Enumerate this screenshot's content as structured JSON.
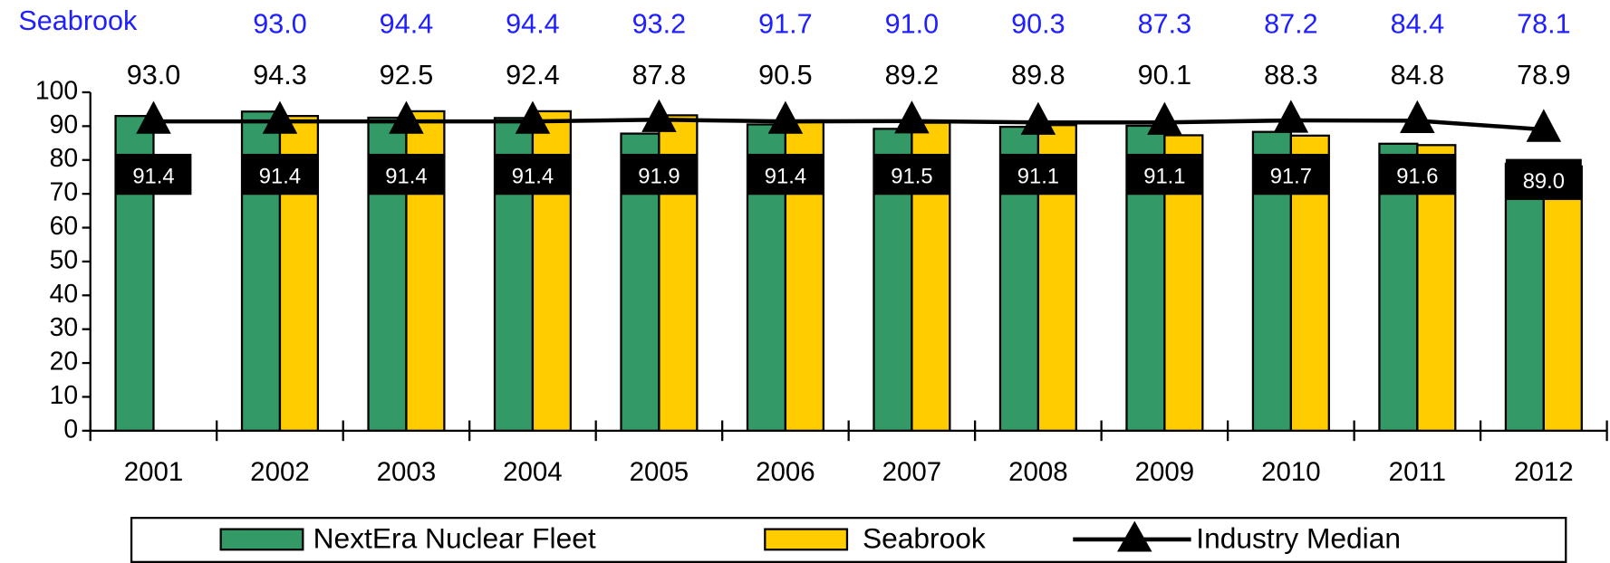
{
  "chart_data": {
    "type": "bar",
    "series_label": "Seabrook",
    "categories": [
      "2001",
      "2002",
      "2003",
      "2004",
      "2005",
      "2006",
      "2007",
      "2008",
      "2009",
      "2010",
      "2011",
      "2012"
    ],
    "series": [
      {
        "name": "NextEra Nuclear Fleet",
        "color": "#339966",
        "values": [
          93.0,
          94.3,
          92.5,
          92.4,
          87.8,
          90.5,
          89.2,
          89.8,
          90.1,
          88.3,
          84.8,
          78.9
        ],
        "value_labels": [
          "93.0",
          "94.3",
          "92.5",
          "92.4",
          "87.8",
          "90.5",
          "89.2",
          "89.8",
          "90.1",
          "88.3",
          "84.8",
          "78.9"
        ],
        "label_color": "#000000"
      },
      {
        "name": "Seabrook",
        "color": "#ffcc00",
        "values": [
          null,
          93.0,
          94.4,
          94.4,
          93.2,
          91.7,
          91.0,
          90.3,
          87.3,
          87.2,
          84.4,
          78.1
        ],
        "value_labels": [
          null,
          "93.0",
          "94.4",
          "94.4",
          "93.2",
          "91.7",
          "91.0",
          "90.3",
          "87.3",
          "87.2",
          "84.4",
          "78.1"
        ],
        "label_color": "#1f1fff"
      },
      {
        "name": "Industry Median",
        "type": "line",
        "color": "#000000",
        "values": [
          91.4,
          91.4,
          91.4,
          91.4,
          91.9,
          91.4,
          91.5,
          91.1,
          91.1,
          91.7,
          91.6,
          89.0
        ],
        "value_labels": [
          "91.4",
          "91.4",
          "91.4",
          "91.4",
          "91.9",
          "91.4",
          "91.5",
          "91.1",
          "91.1",
          "91.7",
          "91.6",
          "89.0"
        ]
      }
    ],
    "ylim": [
      0,
      100
    ],
    "yticks": [
      0,
      10,
      20,
      30,
      40,
      50,
      60,
      70,
      80,
      90,
      100
    ],
    "grid": false,
    "legend": "bottom"
  }
}
